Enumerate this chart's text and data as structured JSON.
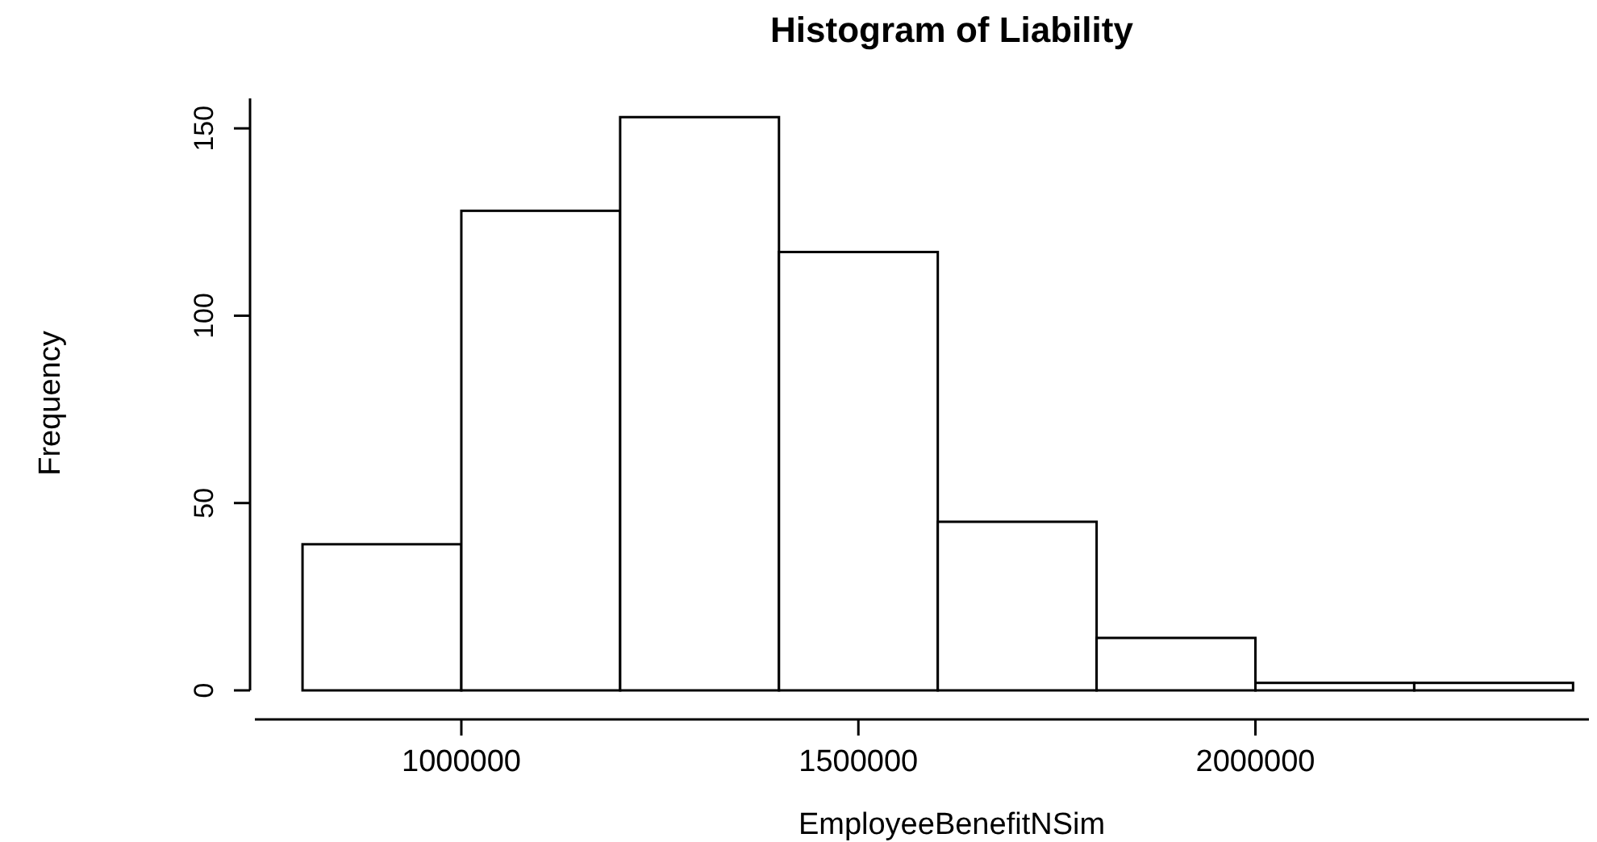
{
  "chart_data": {
    "type": "histogram",
    "title": "Histogram of Liability",
    "xlabel": "EmployeeBenefitNSim",
    "ylabel": "Frequency",
    "bins": [
      800000,
      1000000,
      1200000,
      1400000,
      1600000,
      1800000,
      2000000,
      2200000,
      2400000
    ],
    "values": [
      39,
      128,
      153,
      117,
      45,
      14,
      2,
      2
    ],
    "color": "#ffffff",
    "xlim": [
      740000,
      2420000
    ],
    "xticks": [
      1000000,
      1500000,
      2000000
    ],
    "ylim": [
      0,
      158
    ],
    "yticks": [
      0,
      50,
      100,
      150
    ],
    "grid": false
  }
}
